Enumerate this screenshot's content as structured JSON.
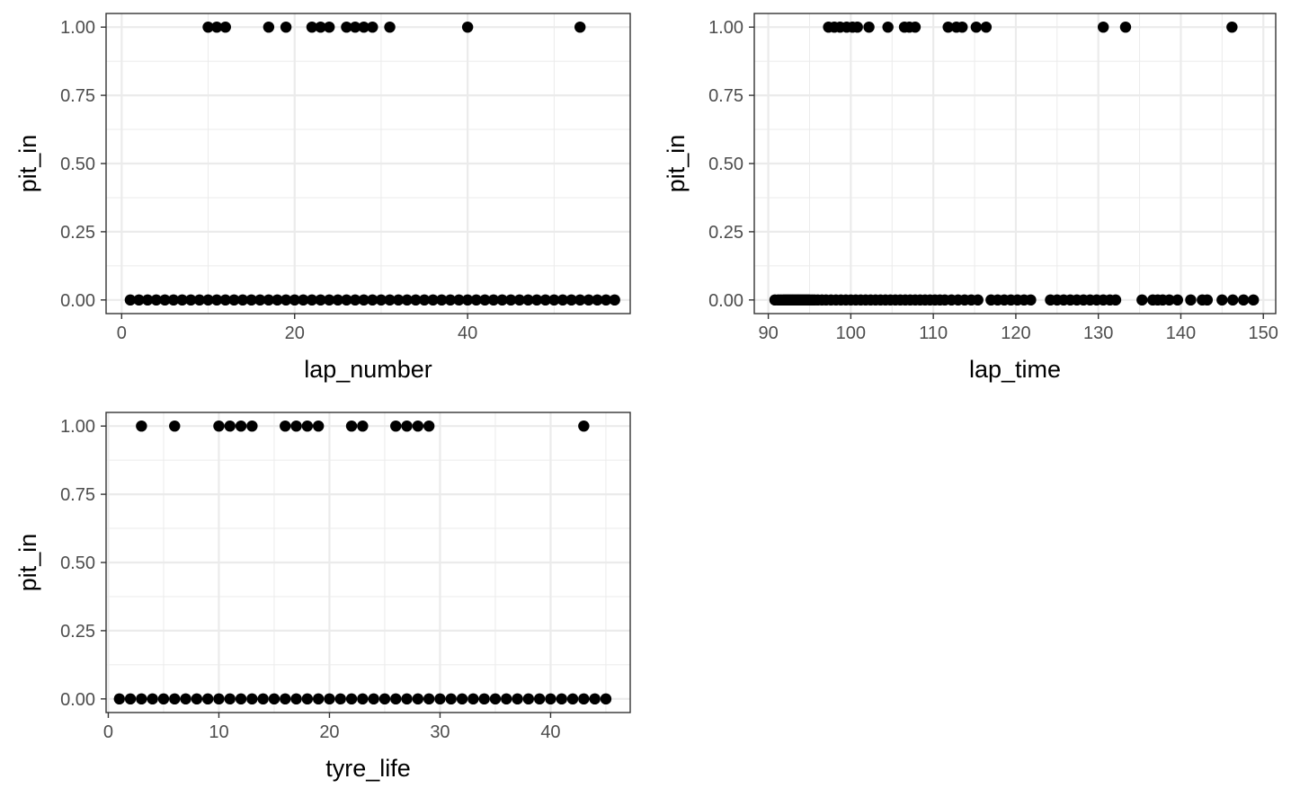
{
  "chart_data": [
    {
      "type": "scatter",
      "title": "",
      "xlabel": "lap_number",
      "ylabel": "pit_in",
      "xlim": [
        -1.8,
        58.8
      ],
      "ylim": [
        -0.05,
        1.05
      ],
      "xticks": [
        0,
        20,
        40
      ],
      "yticks": [
        0,
        0.25,
        0.5,
        0.75,
        1
      ],
      "ytick_labels": [
        "0.00",
        "0.25",
        "0.50",
        "0.75",
        "1.00"
      ],
      "grid": true,
      "x": [
        1,
        2,
        3,
        4,
        5,
        6,
        7,
        8,
        9,
        10,
        11,
        12,
        13,
        14,
        15,
        16,
        17,
        18,
        19,
        20,
        21,
        22,
        23,
        24,
        25,
        26,
        27,
        28,
        29,
        30,
        31,
        32,
        33,
        34,
        35,
        36,
        37,
        38,
        39,
        40,
        41,
        42,
        43,
        44,
        45,
        46,
        47,
        48,
        49,
        50,
        51,
        52,
        53,
        54,
        55,
        56,
        57,
        10,
        11,
        12,
        17,
        19,
        22,
        23,
        24,
        26,
        27,
        28,
        29,
        31,
        40,
        53
      ],
      "y": [
        0,
        0,
        0,
        0,
        0,
        0,
        0,
        0,
        0,
        0,
        0,
        0,
        0,
        0,
        0,
        0,
        0,
        0,
        0,
        0,
        0,
        0,
        0,
        0,
        0,
        0,
        0,
        0,
        0,
        0,
        0,
        0,
        0,
        0,
        0,
        0,
        0,
        0,
        0,
        0,
        0,
        0,
        0,
        0,
        0,
        0,
        0,
        0,
        0,
        0,
        0,
        0,
        0,
        0,
        0,
        0,
        0,
        1,
        1,
        1,
        1,
        1,
        1,
        1,
        1,
        1,
        1,
        1,
        1,
        1,
        1,
        1
      ]
    },
    {
      "type": "scatter",
      "title": "",
      "xlabel": "lap_time",
      "ylabel": "pit_in",
      "xlim": [
        88.3,
        151.5
      ],
      "ylim": [
        -0.05,
        1.05
      ],
      "xticks": [
        90,
        100,
        110,
        120,
        130,
        140,
        150
      ],
      "yticks": [
        0,
        0.25,
        0.5,
        0.75,
        1
      ],
      "ytick_labels": [
        "0.00",
        "0.25",
        "0.50",
        "0.75",
        "1.00"
      ],
      "grid": true,
      "x": [
        90.8,
        91.2,
        91.5,
        91.8,
        92.0,
        92.2,
        92.4,
        92.6,
        92.8,
        93.0,
        93.2,
        93.4,
        93.6,
        93.8,
        94.0,
        94.2,
        94.4,
        94.6,
        94.8,
        95.0,
        95.3,
        95.6,
        96.0,
        96.5,
        97.0,
        97.6,
        98.2,
        98.8,
        99.4,
        100.0,
        100.6,
        101.2,
        101.8,
        102.4,
        103.0,
        103.6,
        104.2,
        104.8,
        105.4,
        106.0,
        106.6,
        107.2,
        107.8,
        108.4,
        109.0,
        109.6,
        110.2,
        110.8,
        111.4,
        112.2,
        113.0,
        113.8,
        114.6,
        115.4,
        117.0,
        117.8,
        118.6,
        119.4,
        120.2,
        121.0,
        121.8,
        124.2,
        125.0,
        125.8,
        126.6,
        127.4,
        128.2,
        129.0,
        129.8,
        130.6,
        131.4,
        132.1,
        135.3,
        136.6,
        137.2,
        137.8,
        138.6,
        139.6,
        141.2,
        142.6,
        143.2,
        145.0,
        146.3,
        147.6,
        148.8,
        97.3,
        98.0,
        98.7,
        99.5,
        100.2,
        100.8,
        102.2,
        104.5,
        106.5,
        107.1,
        107.8,
        111.8,
        112.8,
        113.5,
        115.2,
        116.4,
        130.6,
        133.3,
        146.2
      ],
      "y": [
        0,
        0,
        0,
        0,
        0,
        0,
        0,
        0,
        0,
        0,
        0,
        0,
        0,
        0,
        0,
        0,
        0,
        0,
        0,
        0,
        0,
        0,
        0,
        0,
        0,
        0,
        0,
        0,
        0,
        0,
        0,
        0,
        0,
        0,
        0,
        0,
        0,
        0,
        0,
        0,
        0,
        0,
        0,
        0,
        0,
        0,
        0,
        0,
        0,
        0,
        0,
        0,
        0,
        0,
        0,
        0,
        0,
        0,
        0,
        0,
        0,
        0,
        0,
        0,
        0,
        0,
        0,
        0,
        0,
        0,
        0,
        0,
        0,
        0,
        0,
        0,
        0,
        0,
        0,
        0,
        0,
        0,
        0,
        0,
        0,
        1,
        1,
        1,
        1,
        1,
        1,
        1,
        1,
        1,
        1,
        1,
        1,
        1,
        1,
        1,
        1,
        1,
        1,
        1
      ]
    },
    {
      "type": "scatter",
      "title": "",
      "xlabel": "tyre_life",
      "ylabel": "pit_in",
      "xlim": [
        -0.2,
        47.2
      ],
      "ylim": [
        -0.05,
        1.05
      ],
      "xticks": [
        0,
        10,
        20,
        30,
        40
      ],
      "yticks": [
        0,
        0.25,
        0.5,
        0.75,
        1
      ],
      "ytick_labels": [
        "0.00",
        "0.25",
        "0.50",
        "0.75",
        "1.00"
      ],
      "grid": true,
      "x": [
        1,
        2,
        3,
        4,
        5,
        6,
        7,
        8,
        9,
        10,
        11,
        12,
        13,
        14,
        15,
        16,
        17,
        18,
        19,
        20,
        21,
        22,
        23,
        24,
        25,
        26,
        27,
        28,
        29,
        30,
        31,
        32,
        33,
        34,
        35,
        36,
        37,
        38,
        39,
        40,
        41,
        42,
        43,
        44,
        45,
        3,
        6,
        10,
        11,
        12,
        13,
        16,
        17,
        18,
        19,
        22,
        23,
        26,
        27,
        28,
        29,
        43
      ],
      "y": [
        0,
        0,
        0,
        0,
        0,
        0,
        0,
        0,
        0,
        0,
        0,
        0,
        0,
        0,
        0,
        0,
        0,
        0,
        0,
        0,
        0,
        0,
        0,
        0,
        0,
        0,
        0,
        0,
        0,
        0,
        0,
        0,
        0,
        0,
        0,
        0,
        0,
        0,
        0,
        0,
        0,
        0,
        0,
        0,
        0,
        1,
        1,
        1,
        1,
        1,
        1,
        1,
        1,
        1,
        1,
        1,
        1,
        1,
        1,
        1,
        1,
        1
      ]
    }
  ]
}
